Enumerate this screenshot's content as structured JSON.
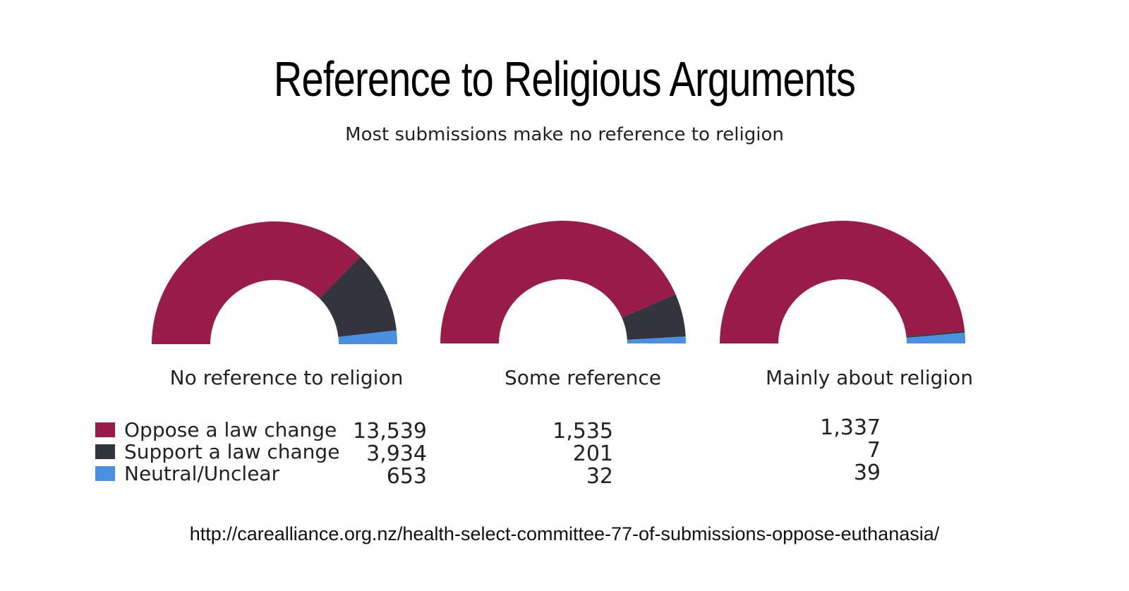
{
  "chart_data": {
    "type": "donut",
    "title": "Reference to Religious Arguments",
    "subtitle": "Most submissions make no reference to religion",
    "categories": [
      "No reference to religion",
      "Some reference",
      "Mainly about religion"
    ],
    "series": [
      {
        "name": "Oppose a law change",
        "color": "#981b48",
        "values": [
          13539,
          1535,
          1337
        ],
        "labels": [
          "13,539",
          "1,535",
          "1,337"
        ]
      },
      {
        "name": "Support a law change",
        "color": "#33343e",
        "values": [
          3934,
          201,
          7
        ],
        "labels": [
          "3,934",
          "201",
          "7"
        ]
      },
      {
        "name": "Neutral/Unclear",
        "color": "#4a90e2",
        "values": [
          653,
          32,
          39
        ],
        "labels": [
          "653",
          "32",
          "39"
        ]
      }
    ],
    "legend_position": "bottom-left"
  },
  "source_url": "http://carealliance.org.nz/health-select-committee-77-of-submissions-oppose-euthanasia/"
}
